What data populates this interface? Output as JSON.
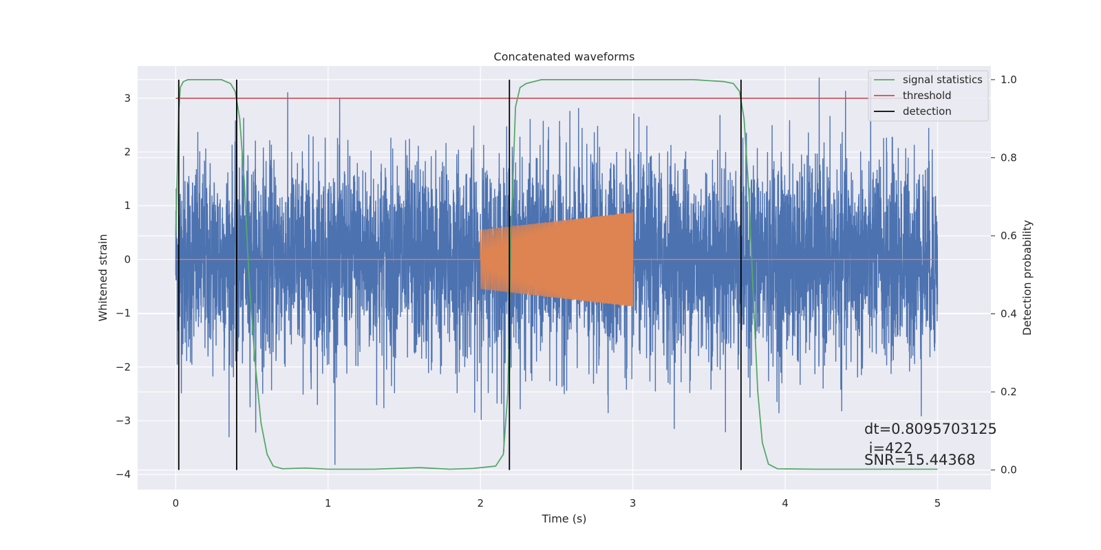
{
  "chart_data": {
    "type": "line",
    "title": "Concatenated waveforms",
    "xlabel": "Time (s)",
    "ylabel": "Whitened strain",
    "y2label": "Detection probability",
    "xlim": [
      -0.25,
      5.35
    ],
    "ylim": [
      -4.28,
      3.6
    ],
    "y2lim": [
      -0.05,
      1.035
    ],
    "x_ticks": [
      0,
      1,
      2,
      3,
      4,
      5
    ],
    "x_tick_labels": [
      "0",
      "1",
      "2",
      "3",
      "4",
      "5"
    ],
    "y_ticks": [
      -4,
      -3,
      -2,
      -1,
      0,
      1,
      2,
      3
    ],
    "y_tick_labels": [
      "−4",
      "−3",
      "−2",
      "−1",
      "0",
      "1",
      "2",
      "3"
    ],
    "y2_ticks": [
      0.0,
      0.2,
      0.4,
      0.6,
      0.8,
      1.0
    ],
    "y2_tick_labels": [
      "0.0",
      "0.2",
      "0.4",
      "0.6",
      "0.8",
      "1.0"
    ],
    "grid": true,
    "legend_position": "top-right",
    "colors": {
      "strain": "#4c72b0",
      "waveform": "#dd8452",
      "statistic": "#55a868",
      "threshold": "#c44e52",
      "detection": "#000000",
      "background": "#eaeaf2"
    },
    "noise": {
      "x_range": [
        0,
        5
      ],
      "envelope_max": 3.4,
      "envelope_min": -3.9
    },
    "injected_waveform": {
      "x_range": [
        2.0,
        3.0
      ],
      "amplitude_start": 0.55,
      "amplitude_end": 0.88
    },
    "threshold": {
      "y": 3.0,
      "x_range": [
        0,
        5
      ]
    },
    "signal_statistics": {
      "x": [
        0.0,
        0.01,
        0.02,
        0.03,
        0.05,
        0.08,
        0.15,
        0.3,
        0.36,
        0.39,
        0.42,
        0.45,
        0.48,
        0.52,
        0.56,
        0.6,
        0.64,
        0.7,
        0.85,
        1.0,
        1.3,
        1.6,
        1.8,
        1.95,
        2.1,
        2.15,
        2.18,
        2.2,
        2.23,
        2.26,
        2.3,
        2.4,
        2.6,
        3.0,
        3.4,
        3.6,
        3.66,
        3.7,
        3.73,
        3.76,
        3.79,
        3.82,
        3.85,
        3.89,
        3.95,
        4.2,
        4.6,
        5.0
      ],
      "y": [
        0.6,
        0.76,
        0.92,
        0.98,
        0.995,
        1.0,
        1.0,
        1.0,
        0.99,
        0.97,
        0.9,
        0.74,
        0.5,
        0.28,
        0.12,
        0.04,
        0.01,
        0.003,
        0.005,
        0.002,
        0.002,
        0.006,
        0.002,
        0.004,
        0.01,
        0.04,
        0.2,
        0.6,
        0.93,
        0.98,
        0.99,
        1.0,
        1.0,
        1.0,
        1.0,
        0.995,
        0.99,
        0.97,
        0.9,
        0.72,
        0.45,
        0.2,
        0.07,
        0.015,
        0.003,
        0.002,
        0.002,
        0.002
      ]
    },
    "detections": [
      0.02,
      0.4,
      2.19,
      3.71
    ],
    "legend": [
      "signal statistics",
      "threshold",
      "detection"
    ],
    "annotations": [
      "dt=0.8095703125",
      " i=422",
      "SNR=15.44368"
    ]
  }
}
